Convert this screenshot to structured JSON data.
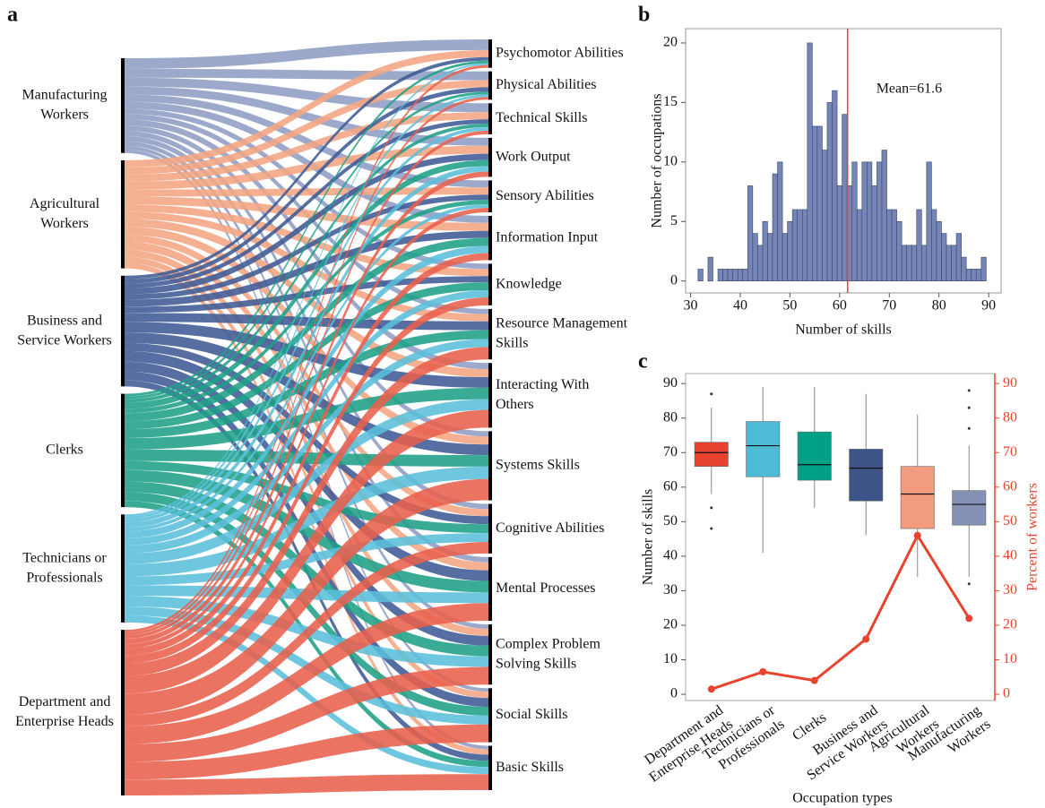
{
  "chart_data": [
    {
      "type": "sankey",
      "panel_label": "a",
      "sources": [
        {
          "name": [
            "Manufacturing",
            "Workers"
          ],
          "color": "#8e9dc4"
        },
        {
          "name": [
            "Agricultural",
            "Workers"
          ],
          "color": "#f4a582"
        },
        {
          "name": [
            "Business and",
            "Service Workers"
          ],
          "color": "#3f5a94"
        },
        {
          "name": [
            "Clerks"
          ],
          "color": "#1fa187"
        },
        {
          "name": [
            "Technicians or",
            "Professionals"
          ],
          "color": "#5bbfdb"
        },
        {
          "name": [
            "Department and",
            "Enterprise Heads"
          ],
          "color": "#e8604c"
        }
      ],
      "targets": [
        [
          "Psychomotor Abilities"
        ],
        [
          "Physical Abilities"
        ],
        [
          "Technical Skills"
        ],
        [
          "Work Output"
        ],
        [
          "Sensory Abilities"
        ],
        [
          "Information Input"
        ],
        [
          "Knowledge"
        ],
        [
          "Resource Management",
          "Skills"
        ],
        [
          "Interacting With",
          "Others"
        ],
        [
          "Systems Skills"
        ],
        [
          "Cognitive Abilities"
        ],
        [
          "Mental Processes"
        ],
        [
          "Complex Problem",
          "Solving Skills"
        ],
        [
          "Social Skills"
        ],
        [
          "Basic Skills"
        ]
      ],
      "flows": [
        [
          12,
          10,
          10,
          9,
          8,
          8,
          6,
          6,
          7,
          6,
          6,
          6,
          5,
          4,
          4
        ],
        [
          8,
          8,
          8,
          9,
          8,
          9,
          8,
          8,
          9,
          9,
          8,
          9,
          8,
          7,
          6
        ],
        [
          4,
          5,
          5,
          7,
          6,
          8,
          7,
          10,
          12,
          12,
          9,
          12,
          11,
          10,
          7
        ],
        [
          3,
          3,
          4,
          7,
          5,
          9,
          9,
          10,
          13,
          13,
          10,
          13,
          12,
          10,
          7
        ],
        [
          2,
          3,
          4,
          6,
          4,
          8,
          8,
          9,
          12,
          14,
          10,
          12,
          12,
          10,
          8
        ],
        [
          3,
          3,
          4,
          6,
          5,
          8,
          9,
          14,
          20,
          24,
          13,
          20,
          20,
          20,
          18
        ]
      ]
    },
    {
      "type": "histogram",
      "panel_label": "b",
      "color": "#7585b8",
      "xlabel": "Number of skills",
      "ylabel": "Number of occupations",
      "bins": [
        31.5,
        32.5,
        33.5,
        34.5,
        35.5,
        36.5,
        37.5,
        38.5,
        39.5,
        40.5,
        41.5,
        42.5,
        43.5,
        44.5,
        45.5,
        46.5,
        47.5,
        48.5,
        49.5,
        50.5,
        51.5,
        52.5,
        53.5,
        54.5,
        55.5,
        56.5,
        57.5,
        58.5,
        59.5,
        60.5,
        61.5,
        62.5,
        63.5,
        64.5,
        65.5,
        66.5,
        67.5,
        68.5,
        69.5,
        70.5,
        71.5,
        72.5,
        73.5,
        74.5,
        75.5,
        76.5,
        77.5,
        78.5,
        79.5,
        80.5,
        81.5,
        82.5,
        83.5,
        84.5,
        85.5,
        86.5,
        87.5,
        88.5,
        89.5
      ],
      "values": [
        1,
        0,
        2,
        0,
        1,
        1,
        1,
        1,
        1,
        1,
        8,
        4,
        3,
        5,
        4,
        9,
        10,
        4,
        5,
        6,
        6,
        6,
        20,
        13,
        13,
        11,
        15,
        16,
        8,
        14,
        8,
        10,
        6,
        10,
        10,
        8,
        10,
        11,
        6,
        6,
        5,
        3,
        3,
        3,
        6,
        3,
        10,
        6,
        5,
        4,
        3,
        3,
        4,
        2,
        1,
        1,
        1,
        2
      ],
      "mean": {
        "value": 61.6,
        "label": "Mean=61.6"
      },
      "mean_color": "#e8432e",
      "xlim": [
        29,
        92.5
      ],
      "ylim": [
        -1,
        21.2
      ],
      "xticks": [
        30,
        40,
        50,
        60,
        70,
        80,
        90
      ],
      "yticks": [
        0,
        5,
        10,
        15,
        20
      ]
    },
    {
      "type": "box",
      "panel_label": "c",
      "xlabel": "Occupation types",
      "ylabel": "Number of skills",
      "y2label": "Percent of workers",
      "categories": [
        [
          "Department and",
          "Enterprise Heads"
        ],
        [
          "Technicians or",
          "Professionals"
        ],
        [
          "Clerks"
        ],
        [
          "Business and",
          "Service Workers"
        ],
        [
          "Agricultural",
          "Workers"
        ],
        [
          "Manufacturing",
          "Workers"
        ]
      ],
      "boxes": [
        {
          "whislo": 58,
          "q1": 66,
          "med": 70,
          "q3": 73,
          "whishi": 83,
          "fliers": [
            87,
            54,
            48
          ],
          "color": "#e8432e"
        },
        {
          "whislo": 41,
          "q1": 63,
          "med": 72,
          "q3": 79,
          "whishi": 89,
          "fliers": [],
          "color": "#4dbbd5"
        },
        {
          "whislo": 54,
          "q1": 62,
          "med": 66.5,
          "q3": 76,
          "whishi": 89,
          "fliers": [],
          "color": "#00a087"
        },
        {
          "whislo": 46,
          "q1": 56,
          "med": 65.5,
          "q3": 71,
          "whishi": 87,
          "fliers": [],
          "color": "#3c5488"
        },
        {
          "whislo": 34,
          "q1": 48,
          "med": 58,
          "q3": 66,
          "whishi": 81,
          "fliers": [],
          "color": "#f39b7f"
        },
        {
          "whislo": 34,
          "q1": 49,
          "med": 55,
          "q3": 59,
          "whishi": 72,
          "fliers": [
            88,
            83,
            77,
            32
          ],
          "color": "#8491b4"
        }
      ],
      "line_values": [
        1.5,
        6.5,
        4,
        16,
        46,
        22
      ],
      "line_color": "#e8432e",
      "ylim": [
        -1.8,
        92.9
      ],
      "yticks": [
        0,
        10,
        20,
        30,
        40,
        50,
        60,
        70,
        80,
        90
      ],
      "y2lim": [
        -1.8,
        92.9
      ],
      "y2ticks": [
        0,
        10,
        20,
        30,
        40,
        50,
        60,
        70,
        80,
        90
      ]
    }
  ]
}
